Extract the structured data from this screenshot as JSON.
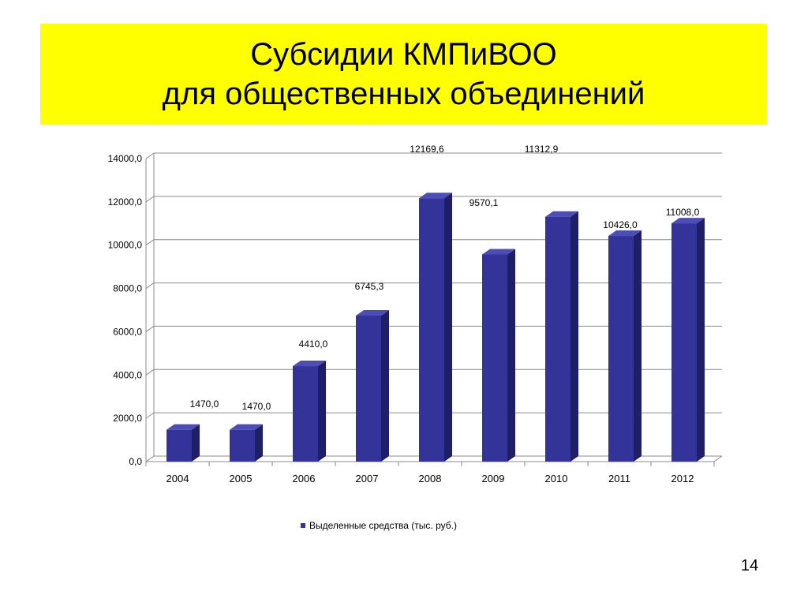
{
  "slide": {
    "title_line1": "Субсидии КМПиВОО",
    "title_line2": "для общественных объединений",
    "page_number": "14"
  },
  "colors": {
    "title_background": "#ffff00",
    "bar_front": "#333399",
    "bar_side": "#1f1f66",
    "bar_top": "#4d4db8",
    "gridline": "#8c8c8c"
  },
  "chart_data": {
    "type": "bar",
    "categories": [
      "2004",
      "2005",
      "2006",
      "2007",
      "2008",
      "2009",
      "2010",
      "2011",
      "2012"
    ],
    "series": [
      {
        "name": "Выделенные средства (тыс. руб.)",
        "values": [
          1470.0,
          1470.0,
          4410.0,
          6745.3,
          12169.6,
          9570.1,
          11312.9,
          10426.0,
          11008.0
        ]
      }
    ],
    "data_labels": [
      "1470,0",
      "1470,0",
      "4410,0",
      "6745,3",
      "12169,6",
      "9570,1",
      "11312,9",
      "10426,0",
      "11008,0"
    ],
    "y_ticks": [
      0,
      2000,
      4000,
      6000,
      8000,
      10000,
      12000,
      14000
    ],
    "y_tick_labels": [
      "0,0",
      "2000,0",
      "4000,0",
      "6000,0",
      "8000,0",
      "10000,0",
      "12000,0",
      "14000,0"
    ],
    "ylim": [
      0,
      14000
    ],
    "grid": true,
    "legend_position": "bottom"
  }
}
